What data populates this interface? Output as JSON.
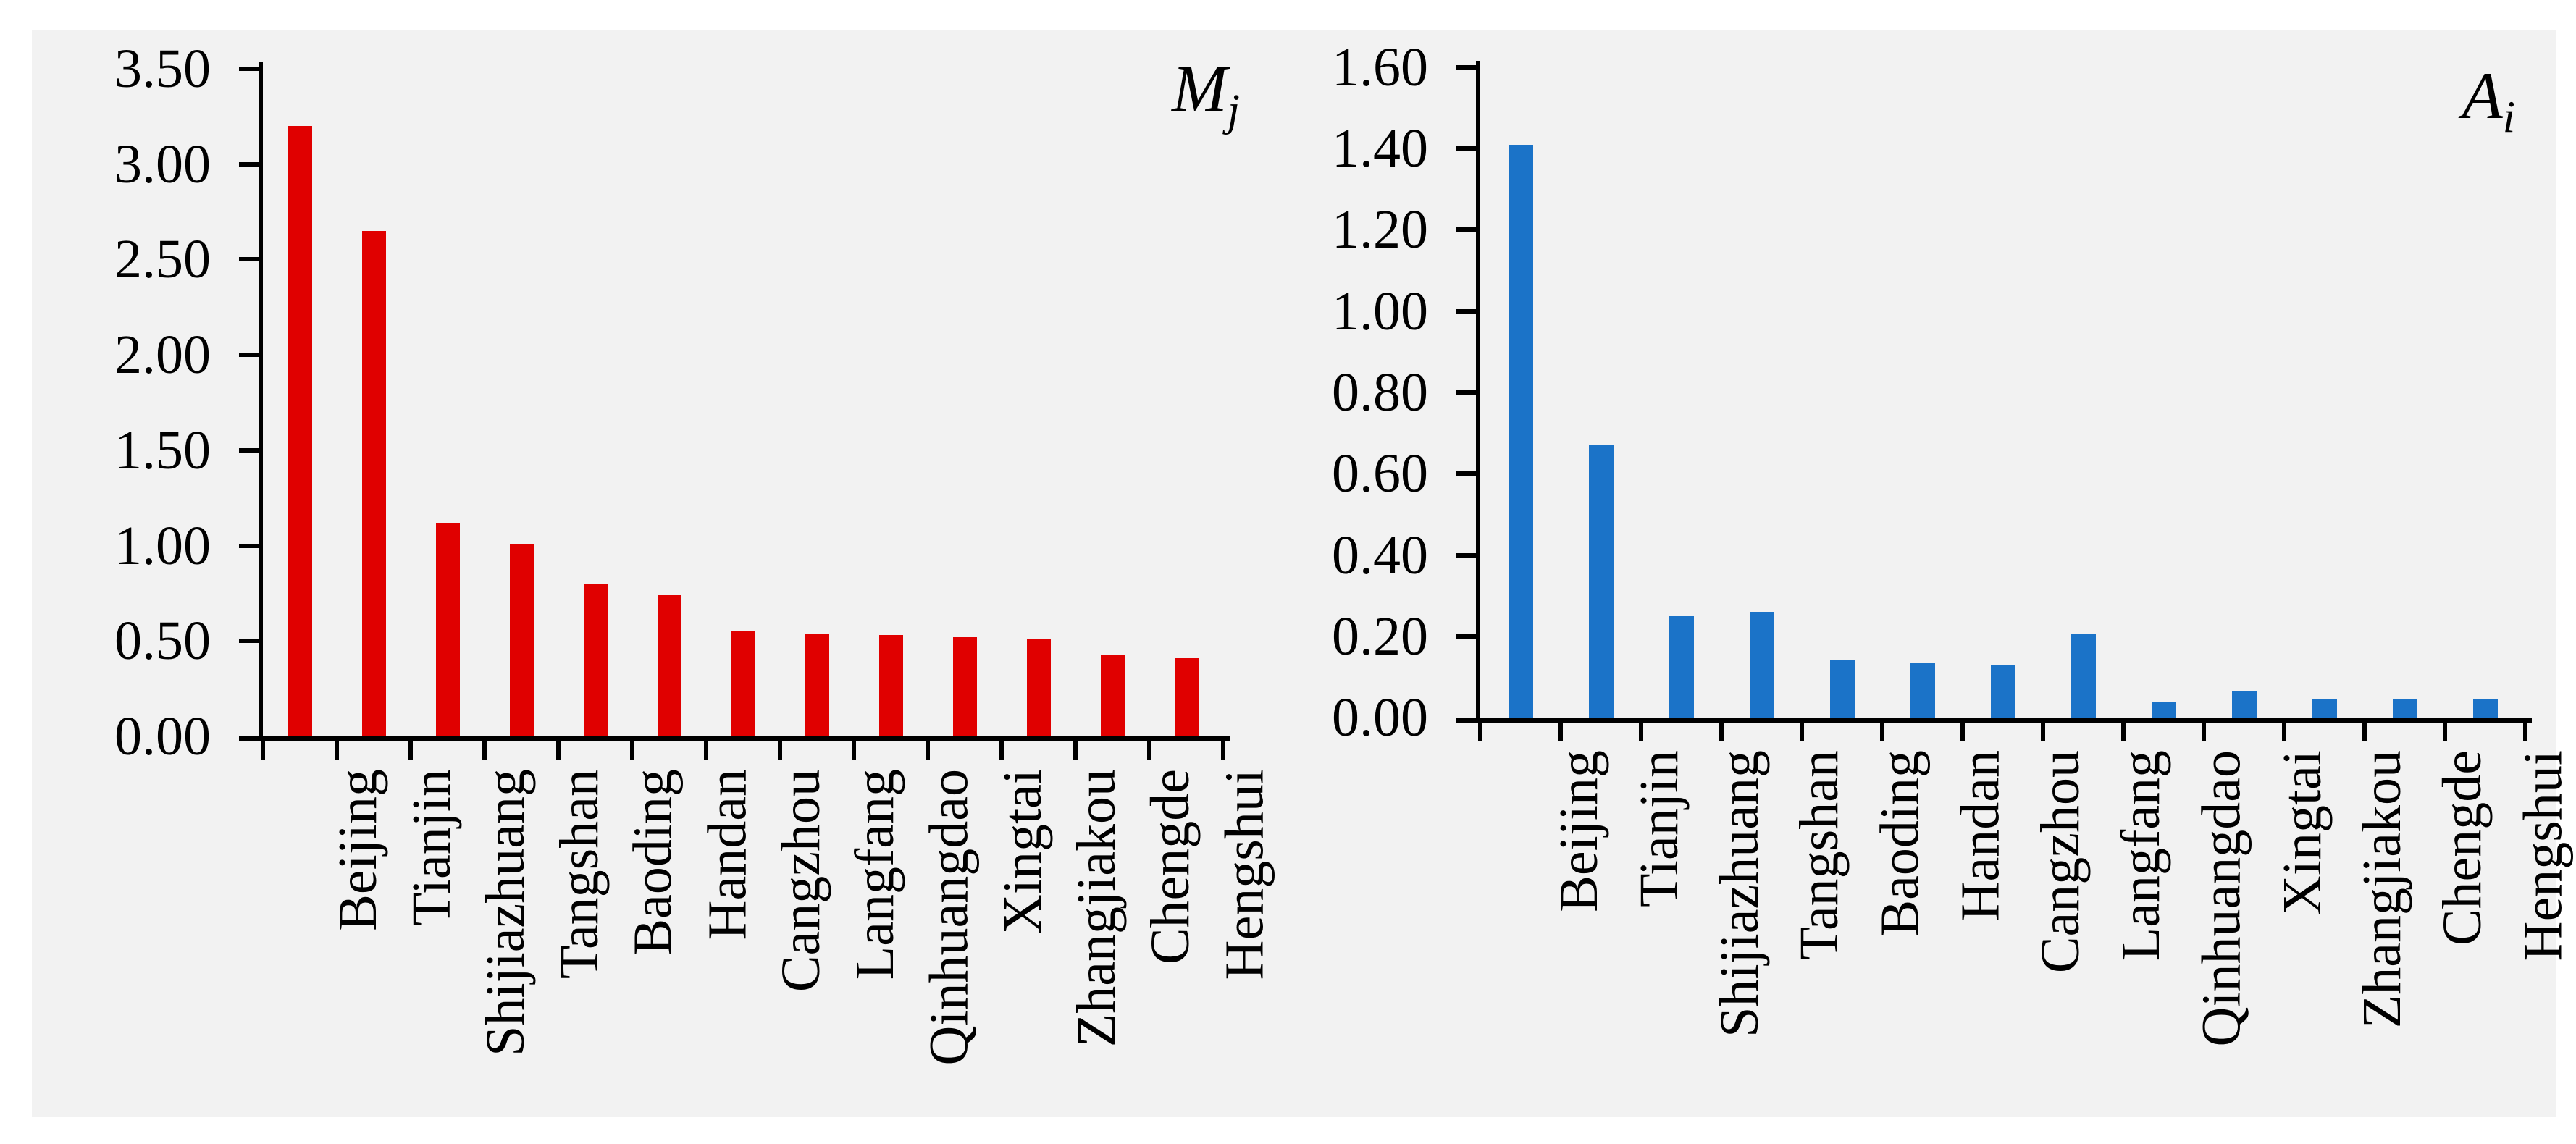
{
  "page": {
    "page_background": "#FFFFFF",
    "panel_background": "#F2F2F2",
    "axis_color": "#000000",
    "text_color": "#000000"
  },
  "chart_data": [
    {
      "type": "bar",
      "title": "M_j",
      "title_main": "M",
      "title_sub": "j",
      "bar_color": "#E00000",
      "categories": [
        "Beijing",
        "Tianjin",
        "Shijiazhuang",
        "Tangshan",
        "Baoding",
        "Handan",
        "Cangzhou",
        "Langfang",
        "Qinhuangdao",
        "Xingtai",
        "Zhangjiakou",
        "Chengde",
        "Hengshui"
      ],
      "values": [
        3.2,
        2.65,
        1.12,
        1.01,
        0.8,
        0.74,
        0.55,
        0.54,
        0.53,
        0.52,
        0.51,
        0.43,
        0.41
      ],
      "ylim": [
        0,
        3.5
      ],
      "ytick_step": 0.5,
      "ytick_labels": [
        "0.00",
        "0.50",
        "1.00",
        "1.50",
        "2.00",
        "2.50",
        "3.00",
        "3.50"
      ],
      "xlabel": "",
      "ylabel": "",
      "grid": false,
      "legend_position": "none",
      "title_position": "top-right"
    },
    {
      "type": "bar",
      "title": "A_i",
      "title_main": "A",
      "title_sub": "i",
      "bar_color": "#1B73C8",
      "categories": [
        "Beijing",
        "Tianjin",
        "Shijiazhuang",
        "Tangshan",
        "Baoding",
        "Handan",
        "Cangzhou",
        "Langfang",
        "Qinhuangdao",
        "Xingtai",
        "Zhangjiakou",
        "Chengde",
        "Hengshui"
      ],
      "values": [
        1.41,
        0.67,
        0.25,
        0.26,
        0.14,
        0.135,
        0.13,
        0.205,
        0.04,
        0.065,
        0.045,
        0.045,
        0.045
      ],
      "ylim": [
        0,
        1.6
      ],
      "ytick_step": 0.2,
      "ytick_labels": [
        "0.00",
        "0.20",
        "0.40",
        "0.60",
        "0.80",
        "1.00",
        "1.20",
        "1.40",
        "1.60"
      ],
      "xlabel": "",
      "ylabel": "",
      "grid": false,
      "legend_position": "none",
      "title_position": "top-right"
    }
  ]
}
